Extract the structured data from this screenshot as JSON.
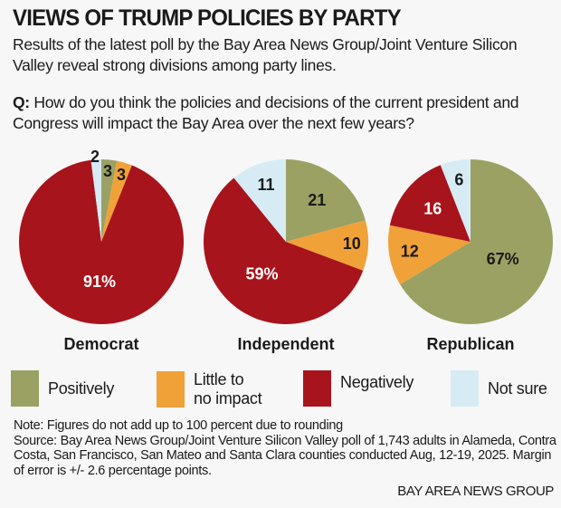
{
  "header": {
    "title": "VIEWS OF TRUMP POLICIES BY PARTY",
    "subtitle": "Results of the latest poll by the Bay Area News Group/Joint Venture Silicon Valley reveal strong divisions among party lines.",
    "question_prefix": "Q:",
    "question": " How do you think the policies and decisions of the current president and Congress will impact the Bay Area over the next few years?"
  },
  "colors": {
    "Positively": "#9ba162",
    "Little to no impact": "#f0a138",
    "Negatively": "#a8141b",
    "Not sure": "#d7ebf4"
  },
  "chart_data": {
    "type": "pie",
    "title": "VIEWS OF TRUMP POLICIES BY PARTY",
    "categories": [
      "Positively",
      "Little to no impact",
      "Negatively",
      "Not sure"
    ],
    "legend_position": "bottom",
    "pies": [
      {
        "name": "Democrat",
        "values": [
          3,
          3,
          91,
          2
        ],
        "labels": [
          "3",
          "3",
          "91%",
          "2"
        ]
      },
      {
        "name": "Independent",
        "values": [
          21,
          10,
          59,
          11
        ],
        "labels": [
          "21",
          "10",
          "59%",
          "11"
        ]
      },
      {
        "name": "Republican",
        "values": [
          67,
          12,
          16,
          6
        ],
        "labels": [
          "67%",
          "12",
          "16",
          "6"
        ]
      }
    ]
  },
  "legend": {
    "items": [
      {
        "label": "Positively"
      },
      {
        "label": "Little to no impact",
        "line1": "Little to",
        "line2": "no impact"
      },
      {
        "label": "Negatively"
      },
      {
        "label": "Not sure"
      }
    ]
  },
  "footer": {
    "note": "Note: Figures do not add up to 100 percent due to rounding",
    "source": "Source: Bay Area News Group/Joint Venture Silicon Valley poll of 1,743 adults in Alameda, Contra Costa, San Francisco, San Mateo and Santa Clara counties conducted Aug, 12-19, 2025. Margin of error is +/- 2.6 percentage points.",
    "credit": "BAY AREA NEWS GROUP"
  }
}
